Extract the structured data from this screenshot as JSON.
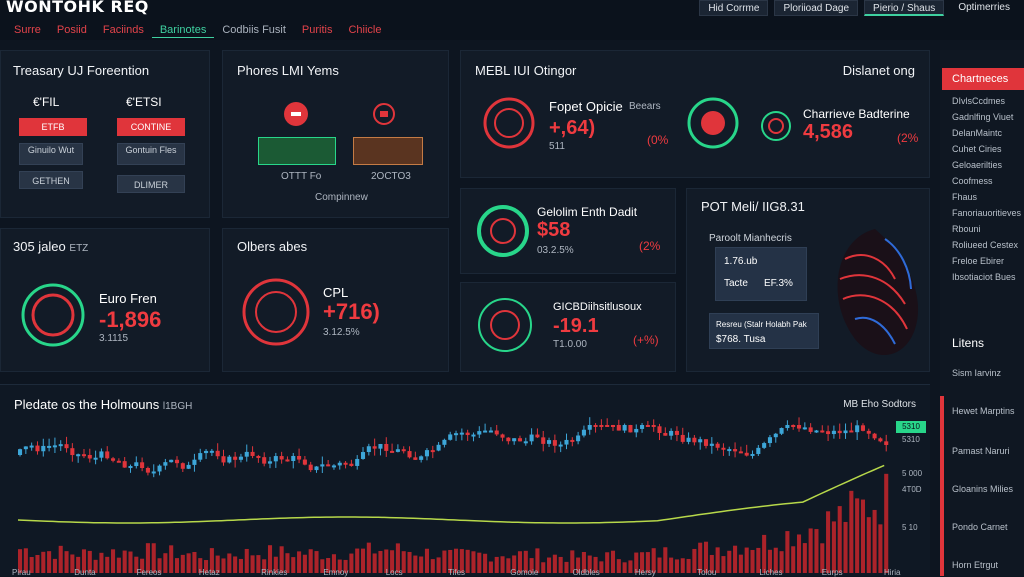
{
  "header": {
    "brand": "WONTOHK REQ",
    "nav": [
      "Surre",
      "Posiid",
      "Faciinds",
      "Barinotes",
      "Codbiis Fusit",
      "Puritis",
      "Chiicle"
    ],
    "right": [
      "Hid Corrme",
      "Ploriioad Dage",
      "Pierio / Shaus",
      "Optimerries"
    ]
  },
  "panels": {
    "p1": {
      "title": "Treasary UJ Foreention",
      "v1": "€'FIL",
      "v2": "€'ETSI",
      "b1": "ETFB",
      "b2": "CONTINE",
      "b3": "Ginuilo Wut",
      "b4": "Gontuin Fles",
      "b5": "GETHEN",
      "b6": "DLIMER"
    },
    "p2": {
      "title": "Phores LMI Yems",
      "cap1": "OTTT Fo",
      "cap2": "2OCTO3",
      "legend": "Compinnew"
    },
    "p3": {
      "title": "MEBL IUI Otingor",
      "right": "Dislanet ong",
      "l1": "Fopet Opicie",
      "l1b": "Beears",
      "v1": "+,64)",
      "s1": "511",
      "p1": "(0%",
      "l2": "Charrieve Badterine",
      "v2": "4,586",
      "p2": "(2%"
    },
    "p4": {
      "title": "305 jaleo",
      "title2": "ETZ",
      "label": "Euro Fren",
      "value": "-1,896",
      "sub": "3.1115"
    },
    "p5": {
      "title": "Olbers abes",
      "label": "CPL",
      "value": "+716)",
      "sub": "3.12.5%"
    },
    "p6": {
      "label": "Gelolim Enth Dadit",
      "value": "$58",
      "sub": "03.2.5%",
      "pct": "(2%"
    },
    "p7": {
      "label": "GICBDiihsitlusoux",
      "value": "-19.1",
      "sub": "T1.0.00",
      "pct": "(+%)"
    },
    "p8": {
      "title": "POT Meli/ IIG8.31",
      "legend": "Paroolt Mianhecris",
      "c1": "1.76.ub",
      "c1b": "",
      "c2": "Tacte",
      "c2b": "EF.3%",
      "row": "Resreu (Stalr Holabh Pak",
      "rowv": "$768. Tusa"
    }
  },
  "sidebar": {
    "header": "Chartneces",
    "items": [
      "DIvlsCcdmes",
      "Gadnlfing Viuet",
      "DelanMaintc",
      "Cuhet Ciries",
      "Geloaerilties",
      "Coofmess",
      "Fhaus",
      "Fanoriauoritieves",
      "Rbouni",
      "Roliueed Cestex",
      "Freloe Ebirer",
      "Ibsotiaciot Bues"
    ],
    "section": "Litens",
    "links": [
      "Sism Iarvinz",
      "Hewet Marptins",
      "Pamast Naruri",
      "Gloanins Milies",
      "Pondo Carnet",
      "Horn Etrgut"
    ]
  },
  "chart": {
    "title": "Pledate os the Holmouns",
    "title2": "l1BGH",
    "right": "MB Eho Sodtors",
    "yticks": [
      "5310",
      "5 000",
      "4T0D",
      "5 10"
    ],
    "last": "5310",
    "xticks": [
      "Pirau",
      "Dunta",
      "Fereos",
      "Hetaz",
      "Rinkies",
      "Emnoy",
      "Locs",
      "Tifes",
      "Gomoie",
      "Oldbles",
      "Hersy",
      "Tolou",
      "Liches",
      "Eurps",
      "Hiria"
    ]
  },
  "chart_data": {
    "type": "bar",
    "title": "Pledate os the Holmouns",
    "categories": [
      "Pirau",
      "Dunta",
      "Fereos",
      "Hetaz",
      "Rinkies",
      "Emnoy",
      "Locs",
      "Tifes",
      "Gomoie",
      "Oldbles",
      "Hersy",
      "Tolou",
      "Liches",
      "Eurps",
      "Hiria"
    ],
    "series": [
      {
        "values": [
          30,
          24,
          28,
          22,
          26,
          24,
          30,
          22,
          24,
          20,
          22,
          30,
          38,
          62,
          95
        ]
      }
    ]
  },
  "colors": {
    "accent": "#e0353b",
    "positive": "#28d68a",
    "bg": "#0d1520",
    "panel": "#121b27"
  }
}
